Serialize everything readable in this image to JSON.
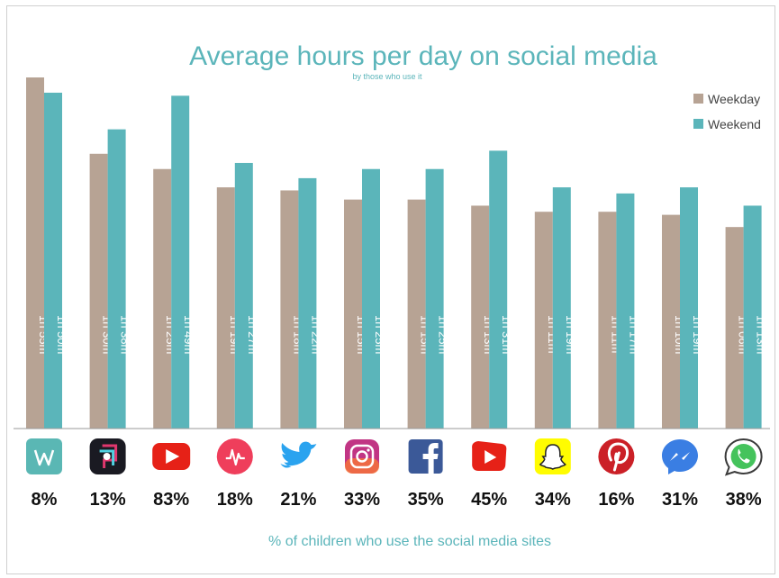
{
  "chart_data": {
    "type": "bar",
    "title": "Average hours per day on social media",
    "subtitle": "by those who use it",
    "xlabel": "% of children who use the social media sites",
    "ylabel": "",
    "unit": "minutes",
    "ylim": [
      0,
      115
    ],
    "grid": false,
    "legend_position": "top-right",
    "categories": [
      "Wattpad",
      "Musical.ly",
      "YouTube",
      "Music.ly",
      "Twitter",
      "Instagram",
      "Facebook",
      "YouTube Kids",
      "Snapchat",
      "Pinterest",
      "Messenger",
      "WhatsApp"
    ],
    "usage_percent": [
      "8%",
      "13%",
      "83%",
      "18%",
      "21%",
      "33%",
      "35%",
      "45%",
      "34%",
      "16%",
      "31%",
      "38%"
    ],
    "series": [
      {
        "name": "Weekday",
        "color": "#b7a394",
        "values": [
          115,
          90,
          85,
          79,
          78,
          75,
          75,
          73,
          71,
          71,
          70,
          66
        ],
        "labels": [
          "1h 55m",
          "1h 30m",
          "1h 25m",
          "1h 19m",
          "1h 18m",
          "1h 15m",
          "1h 15m",
          "1h 13m",
          "1h 11m",
          "1h 11m",
          "1h 10m",
          "1h 06m"
        ]
      },
      {
        "name": "Weekend",
        "color": "#5bb5ba",
        "values": [
          110,
          98,
          109,
          87,
          82,
          85,
          85,
          91,
          79,
          77,
          79,
          73
        ],
        "labels": [
          "1h 50m",
          "1h 38m",
          "1h 49m",
          "1h 27m",
          "1h 22m",
          "1h 25m",
          "1h 25m",
          "1h 31m",
          "1h 19m",
          "1h 17m",
          "1h 19m",
          "1h 13m"
        ]
      }
    ]
  },
  "icons": [
    "wattpad-icon",
    "musically-icon",
    "youtube-icon",
    "musically-heart-icon",
    "twitter-icon",
    "instagram-icon",
    "facebook-icon",
    "youtube-kids-icon",
    "snapchat-icon",
    "pinterest-icon",
    "messenger-icon",
    "whatsapp-icon"
  ]
}
